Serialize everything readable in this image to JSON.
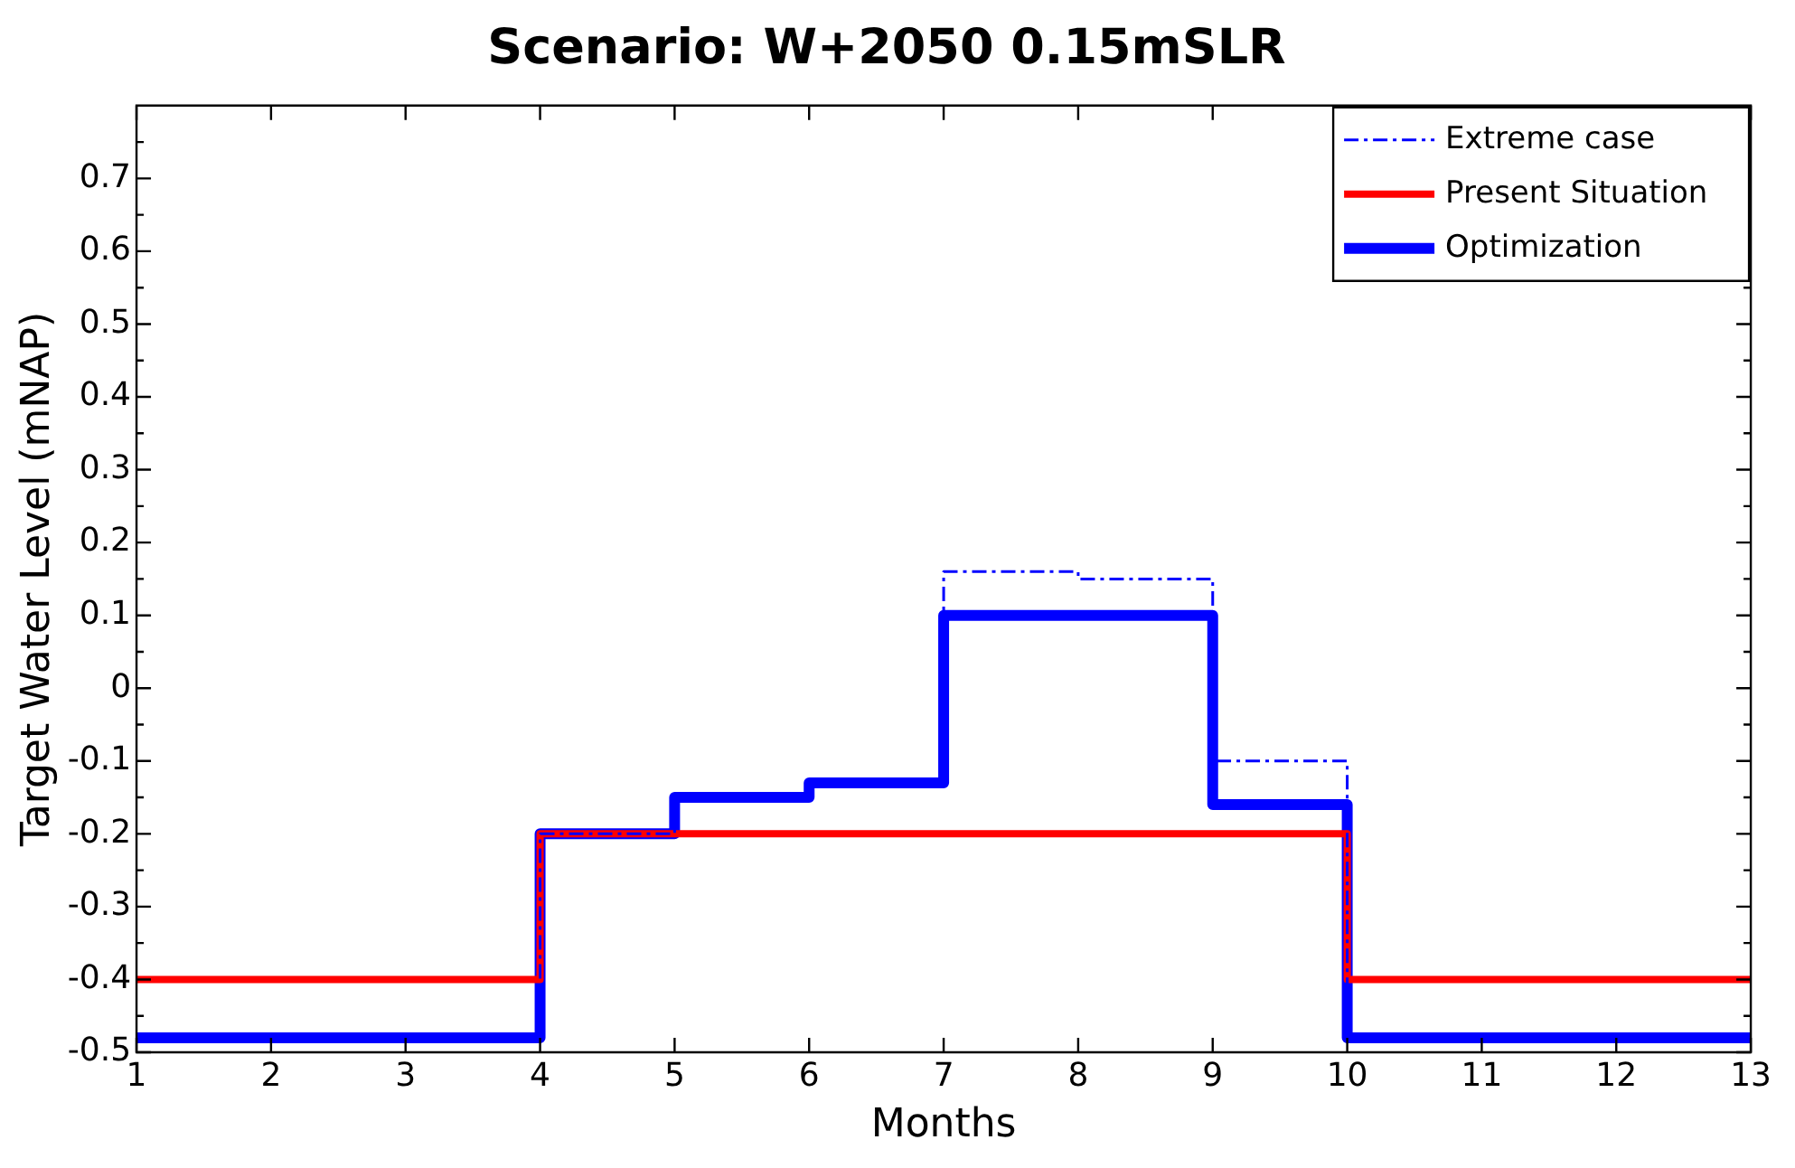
{
  "chart_data": {
    "type": "step",
    "title": "Scenario: W+2050 0.15mSLR",
    "xlabel": "Months",
    "ylabel": "Target Water Level (mNAP)",
    "xlim": [
      1,
      13
    ],
    "xticks": [
      1,
      2,
      3,
      4,
      5,
      6,
      7,
      8,
      9,
      10,
      11,
      12,
      13
    ],
    "ylim": [
      -0.5,
      0.8
    ],
    "yticks": [
      -0.5,
      {
        "value": -0.45,
        "label": null
      },
      -0.4,
      {
        "value": -0.35,
        "label": null
      },
      -0.3,
      {
        "value": -0.25,
        "label": null
      },
      -0.2,
      {
        "value": -0.15,
        "label": null
      },
      -0.1,
      {
        "value": -0.05,
        "label": null
      },
      0,
      {
        "value": 0.05,
        "label": null
      },
      0.1,
      {
        "value": 0.15,
        "label": null
      },
      0.2,
      {
        "value": 0.25,
        "label": null
      },
      0.3,
      {
        "value": 0.35,
        "label": null
      },
      0.4,
      {
        "value": 0.45,
        "label": null
      },
      0.5,
      {
        "value": 0.55,
        "label": null
      },
      0.6,
      {
        "value": 0.65,
        "label": null
      },
      0.7,
      {
        "value": 0.75,
        "label": null
      }
    ],
    "grid": false,
    "legend": "top right",
    "series": [
      {
        "name": "Extreme case",
        "color": "#0000ff",
        "line_style": "dashed",
        "x": [
          1,
          4,
          5,
          6,
          7,
          8,
          9,
          10,
          13
        ],
        "values": [
          -0.48,
          -0.2,
          -0.15,
          -0.13,
          0.16,
          0.15,
          -0.1,
          -0.48,
          -0.48
        ]
      },
      {
        "name": "Present Situation",
        "color": "#ff0000",
        "line_style": "solid",
        "x": [
          1,
          4,
          10,
          13
        ],
        "values": [
          -0.4,
          -0.2,
          -0.4,
          -0.4
        ]
      },
      {
        "name": "Optimization",
        "color": "#0000ff",
        "line_style": "solid",
        "x": [
          1,
          4,
          5,
          6,
          7,
          9,
          10,
          13
        ],
        "values": [
          -0.48,
          -0.2,
          -0.15,
          -0.13,
          0.1,
          -0.16,
          -0.48,
          -0.48
        ]
      }
    ]
  }
}
